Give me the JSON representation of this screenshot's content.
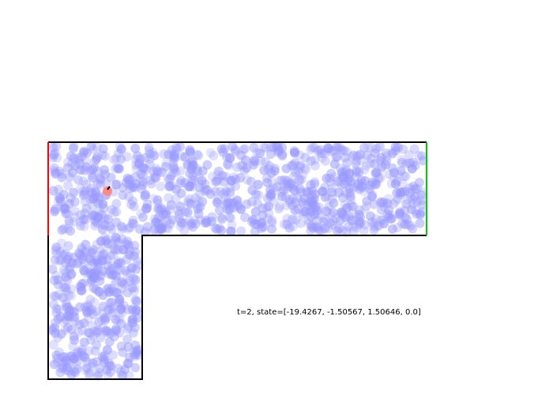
{
  "state_text": "t=2, state=[-19.4267, -1.50567, 1.50646, 0.0]",
  "colors": {
    "wall": "#000000",
    "start_wall": "#ff0000",
    "goal_wall": "#00cc00",
    "particle": "#9999ff",
    "agent": "#ff8888",
    "heading": "#000000"
  },
  "icons": {
    "agent": "agent-dot-icon"
  }
}
